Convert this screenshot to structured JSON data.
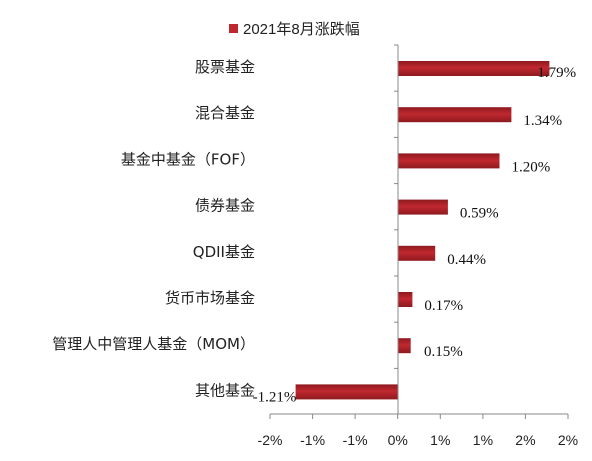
{
  "chart_data": {
    "type": "bar",
    "orientation": "horizontal",
    "categories": [
      "股票基金",
      "混合基金",
      "基金中基金（FOF）",
      "债券基金",
      "QDII基金",
      "货币市场基金",
      "管理人中管理人基金（MOM）",
      "其他基金"
    ],
    "series": [
      {
        "name": "2021年8月涨跌幅",
        "values": [
          1.79,
          1.34,
          1.2,
          0.59,
          0.44,
          0.17,
          0.15,
          -1.21
        ],
        "labels": [
          "1.79%",
          "1.34%",
          "1.20%",
          "0.59%",
          "0.44%",
          "0.17%",
          "0.15%",
          "-1.21%"
        ]
      }
    ],
    "x_ticks": [
      "-2%",
      "-1%",
      "-1%",
      "0%",
      "1%",
      "1%",
      "2%",
      "2%"
    ],
    "xlim": [
      -2.0,
      2.0
    ],
    "legend_position": "top",
    "grid": false,
    "bar_color": "#c0282f",
    "bar_dark": "#8e1a1f",
    "axis_color": "#888888"
  }
}
